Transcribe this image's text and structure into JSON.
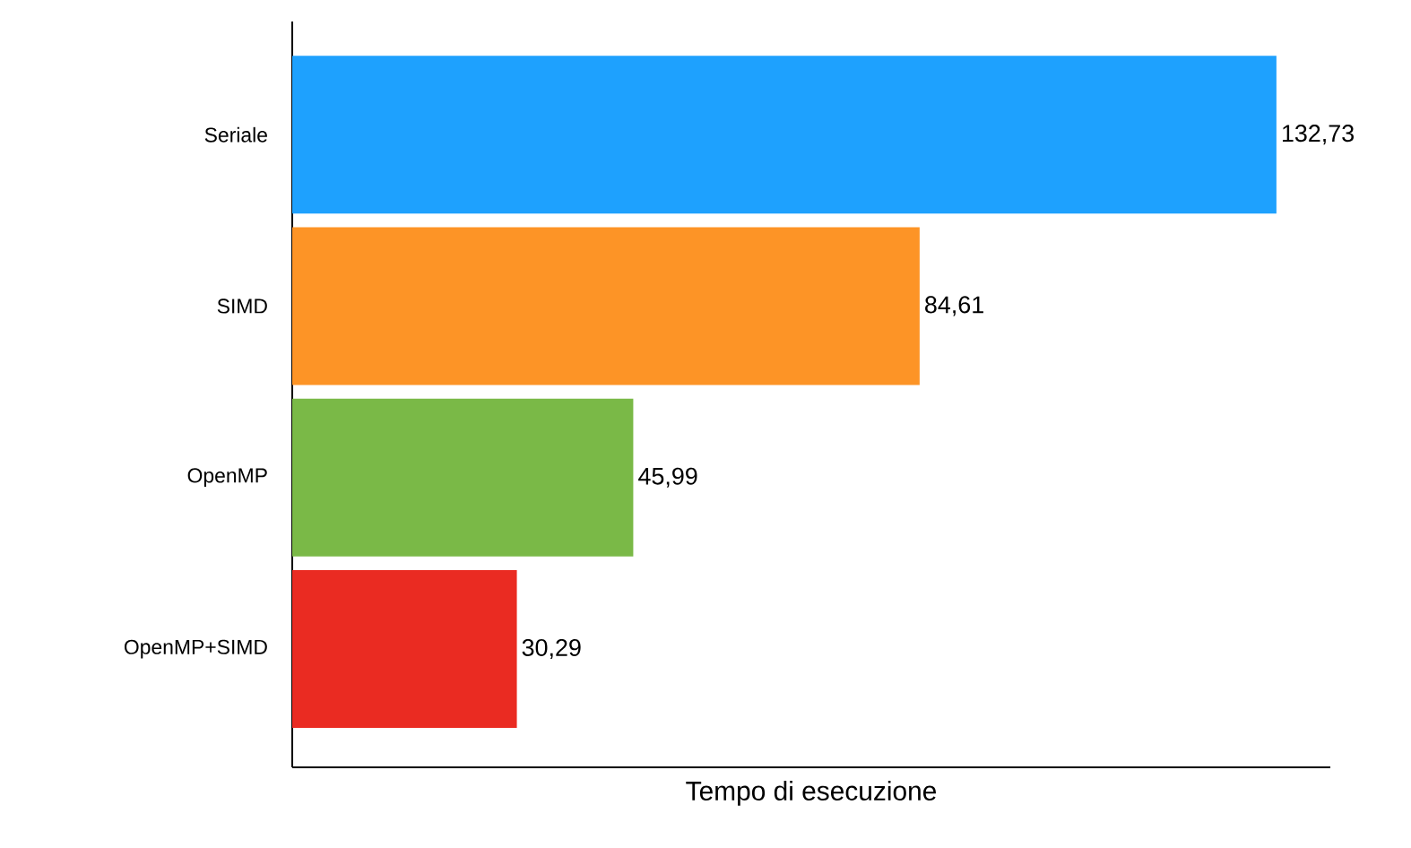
{
  "chart_data": {
    "type": "bar",
    "orientation": "horizontal",
    "xlabel": "Tempo di esecuzione",
    "categories": [
      "Seriale",
      "SIMD",
      "OpenMP",
      "OpenMP+SIMD"
    ],
    "values": [
      132.73,
      84.61,
      45.99,
      30.29
    ],
    "colors": [
      "#1ea1fe",
      "#fd9426",
      "#7ab947",
      "#ea2b22"
    ],
    "value_labels": [
      "132,73",
      "84,61",
      "45,99",
      "30,29"
    ],
    "xlim": [
      0,
      140
    ]
  }
}
